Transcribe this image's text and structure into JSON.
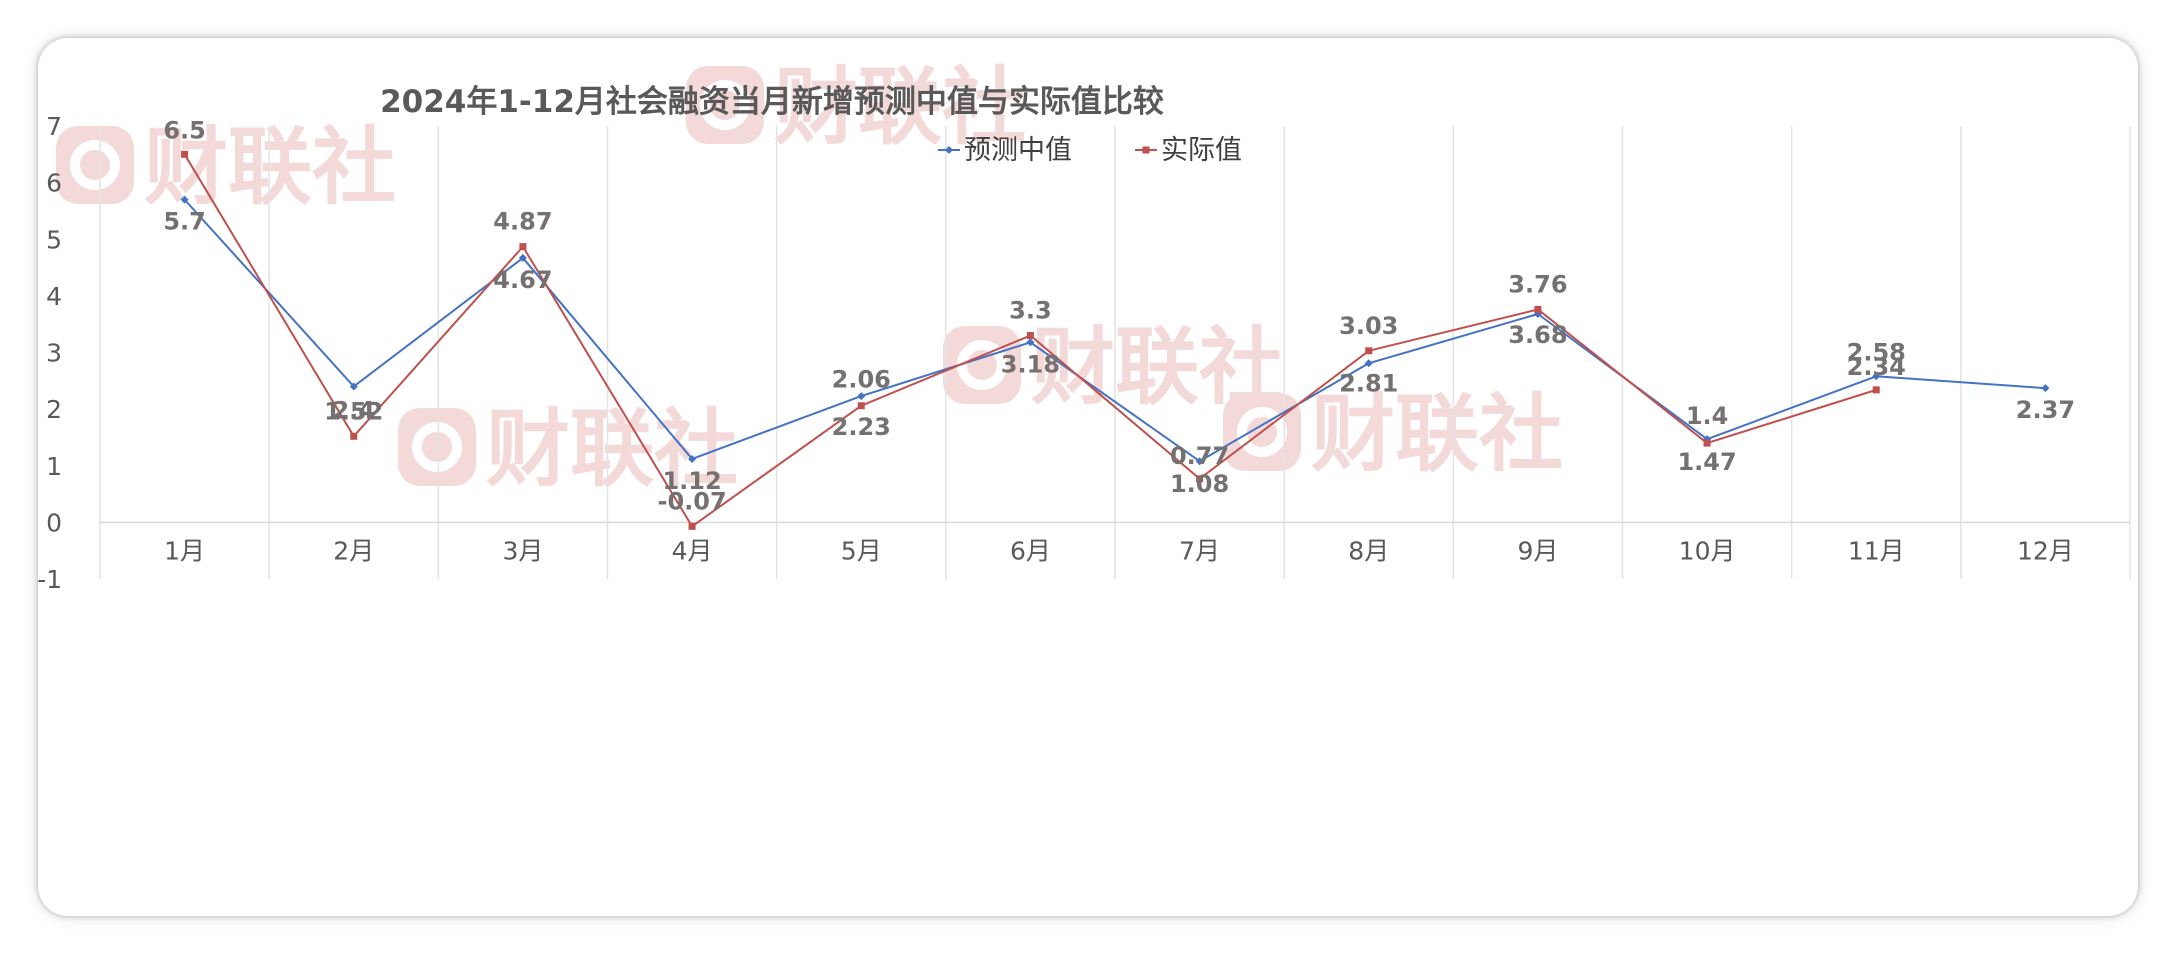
{
  "chart_data": {
    "type": "line",
    "title": "2024年1-12月社会融资当月新增预测中值与实际值比较",
    "categories": [
      "1月",
      "2月",
      "3月",
      "4月",
      "5月",
      "6月",
      "7月",
      "8月",
      "9月",
      "10月",
      "11月",
      "12月"
    ],
    "series": [
      {
        "name": "预测中值",
        "color": "#4472C4",
        "marker": "diamond",
        "values": [
          5.7,
          2.4,
          4.67,
          1.12,
          2.23,
          3.18,
          1.08,
          2.81,
          3.68,
          1.47,
          2.58,
          2.37
        ]
      },
      {
        "name": "实际值",
        "color": "#C0504D",
        "marker": "square",
        "values": [
          6.5,
          1.52,
          4.87,
          -0.07,
          2.06,
          3.3,
          0.77,
          3.03,
          3.76,
          1.4,
          2.34,
          null
        ]
      }
    ],
    "xlabel": "",
    "ylabel": "",
    "ylim": [
      -1,
      7
    ],
    "yticks": [
      -1,
      0,
      1,
      2,
      3,
      4,
      5,
      6,
      7
    ],
    "grid": "vertical",
    "legend": "top-center",
    "data_labels": true
  },
  "watermark": {
    "text": "财联社",
    "color": "#f4d9d9"
  }
}
